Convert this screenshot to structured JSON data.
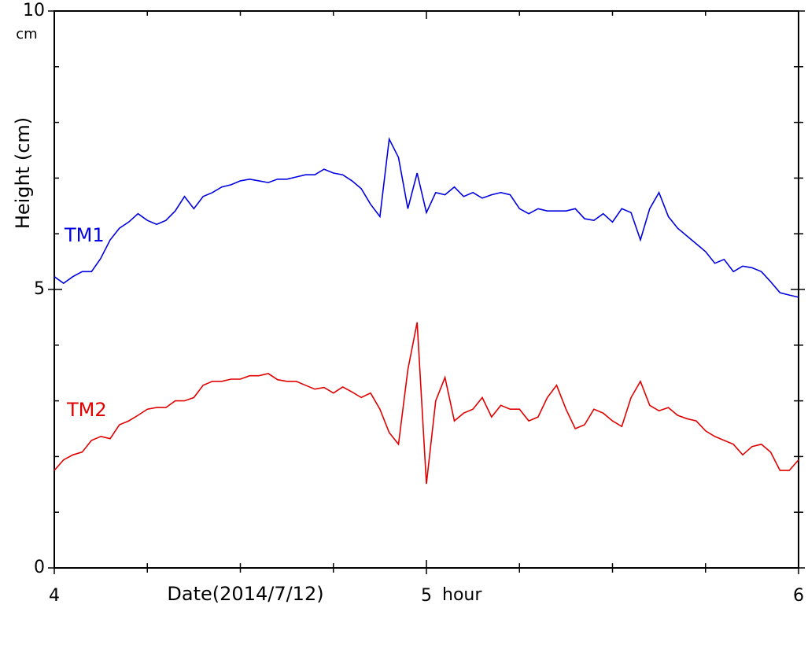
{
  "chart_data": {
    "type": "line",
    "ylabel": "Height (cm)",
    "y_unit": "cm",
    "xlabel": "Date(2014/7/12)",
    "x_unit": "hour",
    "xlim": [
      4,
      6
    ],
    "xticks": [
      4,
      5,
      6
    ],
    "x_minor_ticks": [
      4.25,
      4.5,
      4.75,
      5.25,
      5.5,
      5.75
    ],
    "ylim": [
      0,
      10
    ],
    "yticks": [
      0,
      5,
      10
    ],
    "y_minor_ticks": [
      1,
      2,
      3,
      4,
      6,
      7,
      8,
      9
    ],
    "grid": false,
    "x": [
      4,
      4.025,
      4.05,
      4.075,
      4.1,
      4.125,
      4.15,
      4.175,
      4.2,
      4.225,
      4.25,
      4.275,
      4.3,
      4.325,
      4.35,
      4.375,
      4.4,
      4.425,
      4.45,
      4.475,
      4.5,
      4.525,
      4.55,
      4.575,
      4.6,
      4.625,
      4.65,
      4.675,
      4.7,
      4.725,
      4.75,
      4.775,
      4.8,
      4.825,
      4.85,
      4.875,
      4.9,
      4.925,
      4.95,
      4.975,
      5,
      5.025,
      5.05,
      5.075,
      5.1,
      5.125,
      5.15,
      5.175,
      5.2,
      5.225,
      5.25,
      5.275,
      5.3,
      5.325,
      5.35,
      5.375,
      5.4,
      5.425,
      5.45,
      5.475,
      5.5,
      5.525,
      5.55,
      5.575,
      5.6,
      5.625,
      5.65,
      5.675,
      5.7,
      5.725,
      5.75,
      5.775,
      5.8,
      5.825,
      5.85,
      5.875,
      5.9,
      5.925,
      5.95,
      5.975,
      6
    ],
    "series": [
      {
        "name": "TM1",
        "color": "#0000e0",
        "values": [
          5.23,
          5.11,
          5.23,
          5.32,
          5.32,
          5.56,
          5.89,
          6.1,
          6.21,
          6.36,
          6.24,
          6.17,
          6.24,
          6.41,
          6.67,
          6.45,
          6.67,
          6.74,
          6.84,
          6.88,
          6.95,
          6.98,
          6.95,
          6.92,
          6.98,
          6.98,
          7.02,
          7.06,
          7.06,
          7.16,
          7.09,
          7.06,
          6.95,
          6.81,
          6.53,
          6.31,
          7.7,
          7.37,
          6.45,
          7.09,
          6.38,
          6.74,
          6.7,
          6.84,
          6.67,
          6.74,
          6.64,
          6.7,
          6.74,
          6.7,
          6.45,
          6.36,
          6.45,
          6.41,
          6.41,
          6.41,
          6.45,
          6.27,
          6.24,
          6.36,
          6.21,
          6.45,
          6.38,
          5.89,
          6.45,
          6.74,
          6.31,
          6.1,
          5.96,
          5.82,
          5.68,
          5.47,
          5.54,
          5.32,
          5.42,
          5.39,
          5.32,
          5.14,
          4.94,
          4.9,
          4.86
        ]
      },
      {
        "name": "TM2",
        "color": "#e00000",
        "values": [
          1.75,
          1.94,
          2.03,
          2.08,
          2.29,
          2.36,
          2.32,
          2.57,
          2.64,
          2.74,
          2.85,
          2.88,
          2.88,
          3.0,
          3.0,
          3.06,
          3.28,
          3.35,
          3.35,
          3.39,
          3.39,
          3.45,
          3.45,
          3.49,
          3.38,
          3.35,
          3.35,
          3.28,
          3.21,
          3.24,
          3.14,
          3.25,
          3.16,
          3.06,
          3.14,
          2.85,
          2.43,
          2.22,
          3.56,
          4.41,
          1.51,
          3.0,
          3.42,
          2.64,
          2.78,
          2.85,
          3.06,
          2.71,
          2.92,
          2.85,
          2.85,
          2.64,
          2.71,
          3.06,
          3.28,
          2.85,
          2.5,
          2.57,
          2.85,
          2.78,
          2.64,
          2.54,
          3.06,
          3.35,
          2.92,
          2.82,
          2.88,
          2.74,
          2.68,
          2.64,
          2.46,
          2.36,
          2.29,
          2.22,
          2.03,
          2.18,
          2.22,
          2.08,
          1.75,
          1.75,
          1.94
        ]
      }
    ]
  }
}
